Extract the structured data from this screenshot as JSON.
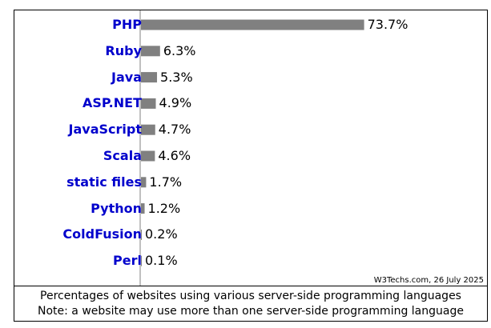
{
  "chart_data": {
    "type": "bar",
    "orientation": "horizontal",
    "categories": [
      "PHP",
      "Ruby",
      "Java",
      "ASP.NET",
      "JavaScript",
      "Scala",
      "static files",
      "Python",
      "ColdFusion",
      "Perl"
    ],
    "values": [
      73.7,
      6.3,
      5.3,
      4.9,
      4.7,
      4.6,
      1.7,
      1.2,
      0.2,
      0.1
    ],
    "value_labels": [
      "73.7%",
      "6.3%",
      "5.3%",
      "4.9%",
      "4.7%",
      "4.6%",
      "1.7%",
      "1.2%",
      "0.2%",
      "0.1%"
    ],
    "xlim": [
      0,
      100
    ],
    "bar_color": "#808080",
    "label_color": "#0000cc",
    "grid": false
  },
  "credit": "W3Techs.com, 26 July 2025",
  "caption": {
    "line1": "Percentages of websites using various server-side programming languages",
    "line2": "Note: a website may use more than one server-side programming language"
  }
}
